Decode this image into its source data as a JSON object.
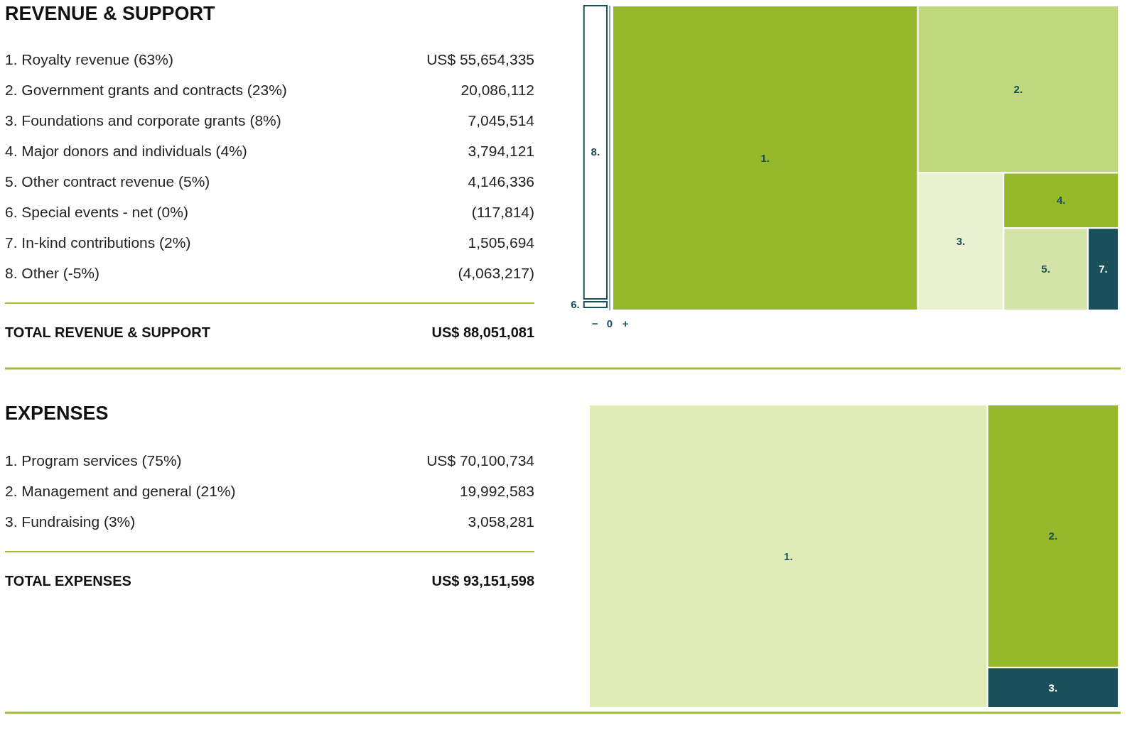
{
  "chart_data": [
    {
      "type": "other",
      "title": "REVENUE & SUPPORT",
      "categories": [
        "1. Royalty revenue (63%)",
        "2. Government grants and contracts (23%)",
        "3. Foundations and corporate grants (8%)",
        "4. Major donors and individuals (4%)",
        "5. Other contract revenue (5%)",
        "6. Special events - net (0%)",
        "7. In-kind contributions (2%)",
        "8. Other (-5%)"
      ],
      "values": [
        55654335,
        20086112,
        7045514,
        3794121,
        4146336,
        -117814,
        1505694,
        -4063217
      ],
      "value_labels": [
        "US$ 55,654,335",
        "20,086,112",
        "7,045,514",
        "3,794,121",
        "4,146,336",
        "(117,814)",
        "1,505,694",
        "(4,063,217)"
      ],
      "colors": [
        "#95b92b",
        "#bfd77f",
        "#eaf1d0",
        "#95b92b",
        "#d4e4a8",
        "#ffffff",
        "#1b4f5a",
        "#ffffff"
      ],
      "cell_labels": [
        "1.",
        "2.",
        "3.",
        "4.",
        "5.",
        "6.",
        "7.",
        "8."
      ],
      "totals": [
        "US$ 88,051,081"
      ],
      "annotations": [
        "TOTAL REVENUE & SUPPORT",
        "−",
        "0",
        "+"
      ]
    },
    {
      "type": "other",
      "title": "EXPENSES",
      "categories": [
        "1. Program services (75%)",
        "2. Management and general (21%)",
        "3. Fundraising (3%)"
      ],
      "values": [
        70100734,
        19992583,
        3058281
      ],
      "value_labels": [
        "US$ 70,100,734",
        "19,992,583",
        "3,058,281"
      ],
      "colors": [
        "#e0ebb5",
        "#95b92b",
        "#1b4f5a"
      ],
      "cell_labels": [
        "1.",
        "2.",
        "3."
      ],
      "totals": [
        "US$ 93,151,598"
      ],
      "annotations": [
        "TOTAL EXPENSES"
      ]
    }
  ]
}
